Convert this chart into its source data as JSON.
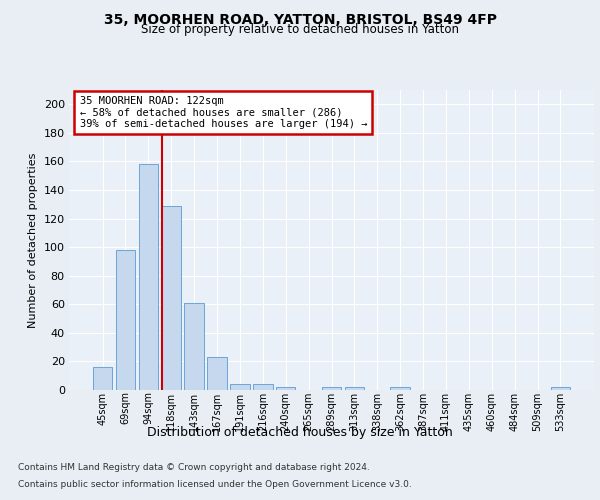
{
  "title1": "35, MOORHEN ROAD, YATTON, BRISTOL, BS49 4FP",
  "title2": "Size of property relative to detached houses in Yatton",
  "xlabel": "Distribution of detached houses by size in Yatton",
  "ylabel": "Number of detached properties",
  "bar_color": "#c5d8ed",
  "bar_edge_color": "#5b9bd5",
  "categories": [
    "45sqm",
    "69sqm",
    "94sqm",
    "118sqm",
    "143sqm",
    "167sqm",
    "191sqm",
    "216sqm",
    "240sqm",
    "265sqm",
    "289sqm",
    "313sqm",
    "338sqm",
    "362sqm",
    "387sqm",
    "411sqm",
    "435sqm",
    "460sqm",
    "484sqm",
    "509sqm",
    "533sqm"
  ],
  "values": [
    16,
    98,
    158,
    129,
    61,
    23,
    4,
    4,
    2,
    0,
    2,
    2,
    0,
    2,
    0,
    0,
    0,
    0,
    0,
    0,
    2
  ],
  "vline_color": "#cc0000",
  "vline_index": 3,
  "annotation_line1": "35 MOORHEN ROAD: 122sqm",
  "annotation_line2": "← 58% of detached houses are smaller (286)",
  "annotation_line3": "39% of semi-detached houses are larger (194) →",
  "annotation_box_color": "#ffffff",
  "annotation_box_edge_color": "#cc0000",
  "footer1": "Contains HM Land Registry data © Crown copyright and database right 2024.",
  "footer2": "Contains public sector information licensed under the Open Government Licence v3.0.",
  "bg_color": "#e8eef4",
  "plot_bg_color": "#eaf0f7",
  "grid_color": "#d0dce8",
  "ylim": [
    0,
    210
  ],
  "yticks": [
    0,
    20,
    40,
    60,
    80,
    100,
    120,
    140,
    160,
    180,
    200
  ]
}
